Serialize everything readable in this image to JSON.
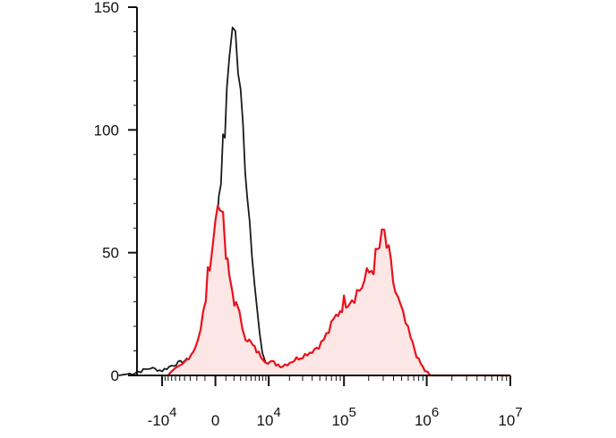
{
  "chart_data": {
    "type": "area",
    "title": "",
    "xlabel": "",
    "ylabel": "",
    "x_scale": "biexponential",
    "ylim": [
      0,
      150
    ],
    "grid": false,
    "legend": "none",
    "y_ticks": [
      {
        "value": 0,
        "label": "0"
      },
      {
        "value": 50,
        "label": "50"
      },
      {
        "value": 100,
        "label": "100"
      },
      {
        "value": 150,
        "label": "150"
      }
    ],
    "x_ticks": [
      {
        "value": -10000,
        "base": "-10",
        "exp": "4"
      },
      {
        "value": 0,
        "base": "0",
        "exp": ""
      },
      {
        "value": 10000,
        "base": "10",
        "exp": "4"
      },
      {
        "value": 100000,
        "base": "10",
        "exp": "5"
      },
      {
        "value": 1000000,
        "base": "10",
        "exp": "6"
      },
      {
        "value": 10000000,
        "base": "10",
        "exp": "7"
      }
    ],
    "series": [
      {
        "color": "#1a1a1a",
        "fill": "none",
        "points": [
          [
            -40000,
            0
          ],
          [
            -25000,
            1
          ],
          [
            -15000,
            3
          ],
          [
            -10000,
            2
          ],
          [
            -7000,
            4
          ],
          [
            -4000,
            6
          ],
          [
            -2500,
            7
          ],
          [
            -1500,
            9
          ],
          [
            -800,
            15
          ],
          [
            -300,
            30
          ],
          [
            0,
            55
          ],
          [
            300,
            75
          ],
          [
            700,
            92
          ],
          [
            1100,
            110
          ],
          [
            1400,
            130
          ],
          [
            1800,
            148
          ],
          [
            2200,
            138
          ],
          [
            2600,
            125
          ],
          [
            3000,
            112
          ],
          [
            3400,
            100
          ],
          [
            3800,
            88
          ],
          [
            4200,
            76
          ],
          [
            4700,
            63
          ],
          [
            5200,
            52
          ],
          [
            5800,
            40
          ],
          [
            6400,
            28
          ],
          [
            7100,
            17
          ],
          [
            7900,
            9
          ],
          [
            8800,
            5
          ],
          [
            10000,
            3
          ],
          [
            13000,
            2
          ],
          [
            18000,
            1
          ],
          [
            30000,
            0
          ],
          [
            100000,
            0
          ],
          [
            1000000,
            0
          ],
          [
            10000000,
            0
          ]
        ]
      },
      {
        "color": "#e8121c",
        "fill": "#fde6e6",
        "points": [
          [
            -8000,
            0
          ],
          [
            -4500,
            4
          ],
          [
            -2500,
            10
          ],
          [
            -1500,
            18
          ],
          [
            -900,
            32
          ],
          [
            -500,
            48
          ],
          [
            -200,
            56
          ],
          [
            0,
            62
          ],
          [
            200,
            70
          ],
          [
            400,
            74
          ],
          [
            700,
            60
          ],
          [
            1000,
            48
          ],
          [
            1400,
            40
          ],
          [
            1800,
            34
          ],
          [
            2300,
            28
          ],
          [
            2800,
            24
          ],
          [
            3300,
            20
          ],
          [
            3900,
            16
          ],
          [
            4600,
            14
          ],
          [
            5400,
            12
          ],
          [
            6300,
            10
          ],
          [
            7500,
            8
          ],
          [
            9000,
            6
          ],
          [
            12000,
            5
          ],
          [
            16000,
            4
          ],
          [
            22000,
            6
          ],
          [
            30000,
            8
          ],
          [
            40000,
            10
          ],
          [
            52000,
            13
          ],
          [
            65000,
            18
          ],
          [
            80000,
            24
          ],
          [
            100000,
            30
          ],
          [
            125000,
            32
          ],
          [
            155000,
            35
          ],
          [
            190000,
            40
          ],
          [
            230000,
            45
          ],
          [
            270000,
            52
          ],
          [
            310000,
            57
          ],
          [
            350000,
            48
          ],
          [
            420000,
            34
          ],
          [
            520000,
            24
          ],
          [
            640000,
            15
          ],
          [
            800000,
            6
          ],
          [
            950000,
            2
          ],
          [
            1100000,
            0
          ],
          [
            10000000,
            0
          ]
        ]
      }
    ]
  }
}
